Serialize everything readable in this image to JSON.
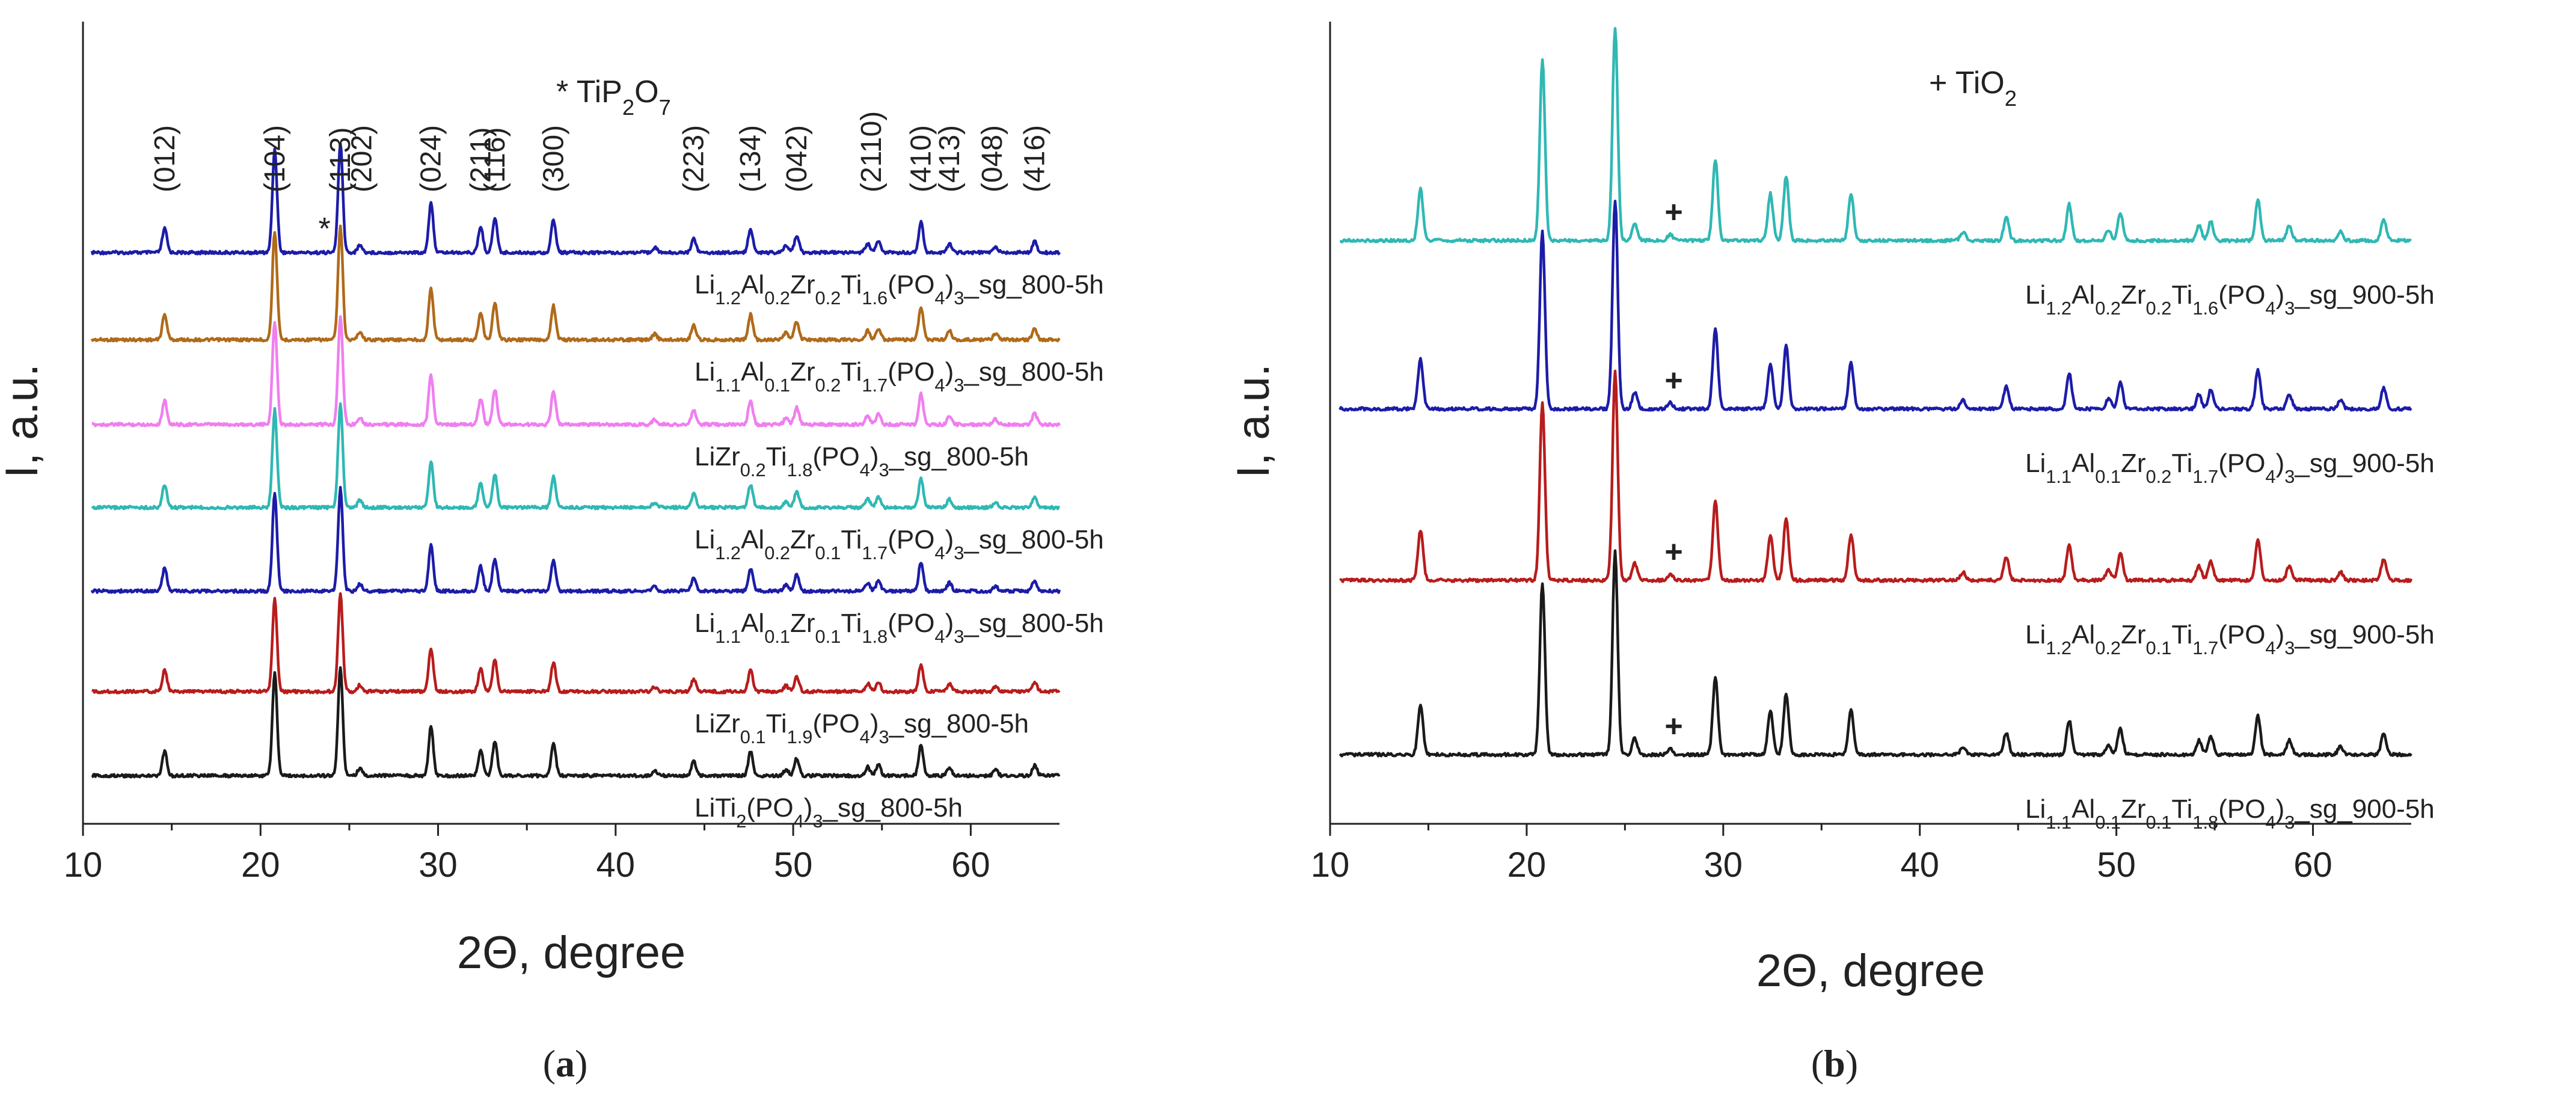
{
  "chart_data": [
    {
      "panel": "(a)",
      "panel_letter": "a",
      "type": "line",
      "xlabel": "2Θ, degree",
      "ylabel": "I, a.u.",
      "xlim": [
        10,
        65
      ],
      "xticks": [
        10,
        20,
        30,
        40,
        50,
        60
      ],
      "legend_note": {
        "marker": "*",
        "phase": "TiP",
        "sub1": "2",
        "mid": "O",
        "sub2": "7"
      },
      "hkl_labels": [
        {
          "label": "(012)",
          "x": 14.6
        },
        {
          "label": "(104)",
          "x": 20.8
        },
        {
          "label": "(113)",
          "x": 24.5
        },
        {
          "label": "(202)",
          "x": 25.7
        },
        {
          "label": "(024)",
          "x": 29.6
        },
        {
          "label": "(211)",
          "x": 32.4
        },
        {
          "label": "(116)",
          "x": 33.2
        },
        {
          "label": "(300)",
          "x": 36.5
        },
        {
          "label": "(223)",
          "x": 44.4
        },
        {
          "label": "(134)",
          "x": 47.6
        },
        {
          "label": "(042)",
          "x": 50.2
        },
        {
          "label": "(2110)",
          "x": 54.4
        },
        {
          "label": "(410)",
          "x": 57.2
        },
        {
          "label": "(413)",
          "x": 58.8
        },
        {
          "label": "(048)",
          "x": 61.2
        },
        {
          "label": "(416)",
          "x": 63.6
        }
      ],
      "impurity_marks": [
        {
          "symbol": "*",
          "x": 23.6
        }
      ],
      "series": [
        {
          "name": [
            [
              "Li",
              ""
            ],
            [
              "1.2",
              "sub"
            ],
            [
              "Al",
              ""
            ],
            [
              "0.2",
              "sub"
            ],
            [
              "Zr",
              ""
            ],
            [
              "0.2",
              "sub"
            ],
            [
              "Ti",
              ""
            ],
            [
              "1.6",
              "sub"
            ],
            [
              "(PO",
              ""
            ],
            [
              "4",
              "sub"
            ],
            [
              ")",
              ""
            ],
            [
              "3",
              "sub"
            ],
            [
              "_sg_800-5h",
              ""
            ]
          ],
          "color": "#1c1ca8"
        },
        {
          "name": [
            [
              "Li",
              ""
            ],
            [
              "1.1",
              "sub"
            ],
            [
              "Al",
              ""
            ],
            [
              "0.1",
              "sub"
            ],
            [
              "Zr",
              ""
            ],
            [
              "0.2",
              "sub"
            ],
            [
              "Ti",
              ""
            ],
            [
              "1.7",
              "sub"
            ],
            [
              "(PO",
              ""
            ],
            [
              "4",
              "sub"
            ],
            [
              ")",
              ""
            ],
            [
              "3",
              "sub"
            ],
            [
              "_sg_800-5h",
              ""
            ]
          ],
          "color": "#b06a1a"
        },
        {
          "name": [
            [
              "LiZr",
              ""
            ],
            [
              "0.2",
              "sub"
            ],
            [
              "Ti",
              ""
            ],
            [
              "1.8",
              "sub"
            ],
            [
              "(PO",
              ""
            ],
            [
              "4",
              "sub"
            ],
            [
              ")",
              ""
            ],
            [
              "3",
              "sub"
            ],
            [
              "_sg_800-5h",
              ""
            ]
          ],
          "color": "#f07ef0"
        },
        {
          "name": [
            [
              "Li",
              ""
            ],
            [
              "1.2",
              "sub"
            ],
            [
              "Al",
              ""
            ],
            [
              "0.2",
              "sub"
            ],
            [
              "Zr",
              ""
            ],
            [
              "0.1",
              "sub"
            ],
            [
              "Ti",
              ""
            ],
            [
              "1.7",
              "sub"
            ],
            [
              "(PO",
              ""
            ],
            [
              "4",
              "sub"
            ],
            [
              ")",
              ""
            ],
            [
              "3",
              "sub"
            ],
            [
              "_sg_800-5h",
              ""
            ]
          ],
          "color": "#2fb8b4"
        },
        {
          "name": [
            [
              "Li",
              ""
            ],
            [
              "1.1",
              "sub"
            ],
            [
              "Al",
              ""
            ],
            [
              "0.1",
              "sub"
            ],
            [
              "Zr",
              ""
            ],
            [
              "0.1",
              "sub"
            ],
            [
              "Ti",
              ""
            ],
            [
              "1.8",
              "sub"
            ],
            [
              "(PO",
              ""
            ],
            [
              "4",
              "sub"
            ],
            [
              ")",
              ""
            ],
            [
              "3",
              "sub"
            ],
            [
              "_sg_800-5h",
              ""
            ]
          ],
          "color": "#1c1ca8"
        },
        {
          "name": [
            [
              "LiZr",
              ""
            ],
            [
              "0.1",
              "sub"
            ],
            [
              "Ti",
              ""
            ],
            [
              "1.9",
              "sub"
            ],
            [
              "(PO",
              ""
            ],
            [
              "4",
              "sub"
            ],
            [
              ")",
              ""
            ],
            [
              "3",
              "sub"
            ],
            [
              "_sg_800-5h",
              ""
            ]
          ],
          "color": "#b81c1c"
        },
        {
          "name": [
            [
              "LiTi",
              ""
            ],
            [
              "2",
              "sub"
            ],
            [
              "(PO",
              ""
            ],
            [
              "4",
              "sub"
            ],
            [
              ")",
              ""
            ],
            [
              "3",
              "sub"
            ],
            [
              "_sg_800-5h",
              ""
            ]
          ],
          "color": "#1a1a1a"
        }
      ],
      "peaks": [
        {
          "x": 14.6,
          "h": 0.22
        },
        {
          "x": 20.8,
          "h": 0.95
        },
        {
          "x": 24.5,
          "h": 1.0
        },
        {
          "x": 25.6,
          "h": 0.07
        },
        {
          "x": 29.6,
          "h": 0.45
        },
        {
          "x": 32.4,
          "h": 0.24
        },
        {
          "x": 33.2,
          "h": 0.32
        },
        {
          "x": 36.5,
          "h": 0.3
        },
        {
          "x": 42.2,
          "h": 0.05
        },
        {
          "x": 44.4,
          "h": 0.13
        },
        {
          "x": 47.6,
          "h": 0.22
        },
        {
          "x": 49.6,
          "h": 0.06
        },
        {
          "x": 50.2,
          "h": 0.16
        },
        {
          "x": 54.2,
          "h": 0.08
        },
        {
          "x": 54.8,
          "h": 0.1
        },
        {
          "x": 57.2,
          "h": 0.28
        },
        {
          "x": 58.8,
          "h": 0.08
        },
        {
          "x": 61.4,
          "h": 0.05
        },
        {
          "x": 63.6,
          "h": 0.1
        }
      ]
    },
    {
      "panel": "(b)",
      "panel_letter": "b",
      "type": "line",
      "xlabel": "2Θ, degree",
      "ylabel": "I, a.u.",
      "xlim": [
        10,
        65
      ],
      "xticks": [
        10,
        20,
        30,
        40,
        50,
        60
      ],
      "legend_note": {
        "marker": "+",
        "phase": "TiO",
        "sub1": "2"
      },
      "impurity_marks": [
        {
          "symbol": "+",
          "x": 27.3
        }
      ],
      "series": [
        {
          "name": [
            [
              "Li",
              ""
            ],
            [
              "1.2",
              "sub"
            ],
            [
              "Al",
              ""
            ],
            [
              "0.2",
              "sub"
            ],
            [
              "Zr",
              ""
            ],
            [
              "0.2",
              "sub"
            ],
            [
              "Ti",
              ""
            ],
            [
              "1.6",
              "sub"
            ],
            [
              "(PO",
              ""
            ],
            [
              "4",
              "sub"
            ],
            [
              ")",
              ""
            ],
            [
              "3",
              "sub"
            ],
            [
              "_sg_900-5h",
              ""
            ]
          ],
          "color": "#2fb8b4"
        },
        {
          "name": [
            [
              "Li",
              ""
            ],
            [
              "1.1",
              "sub"
            ],
            [
              "Al",
              ""
            ],
            [
              "0.1",
              "sub"
            ],
            [
              "Zr",
              ""
            ],
            [
              "0.2",
              "sub"
            ],
            [
              "Ti",
              ""
            ],
            [
              "1.7",
              "sub"
            ],
            [
              "(PO",
              ""
            ],
            [
              "4",
              "sub"
            ],
            [
              ")",
              ""
            ],
            [
              "3",
              "sub"
            ],
            [
              "_sg_900-5h",
              ""
            ]
          ],
          "color": "#1c1ca8"
        },
        {
          "name": [
            [
              "Li",
              ""
            ],
            [
              "1.2",
              "sub"
            ],
            [
              "Al",
              ""
            ],
            [
              "0.2",
              "sub"
            ],
            [
              "Zr",
              ""
            ],
            [
              "0.1",
              "sub"
            ],
            [
              "Ti",
              ""
            ],
            [
              "1.7",
              "sub"
            ],
            [
              "(PO",
              ""
            ],
            [
              "4",
              "sub"
            ],
            [
              ")",
              ""
            ],
            [
              "3",
              "sub"
            ],
            [
              "_sg_900-5h",
              ""
            ]
          ],
          "color": "#b81c1c"
        },
        {
          "name": [
            [
              "Li",
              ""
            ],
            [
              "1.1",
              "sub"
            ],
            [
              "Al",
              ""
            ],
            [
              "0.1",
              "sub"
            ],
            [
              "Zr",
              ""
            ],
            [
              "0.1",
              "sub"
            ],
            [
              "Ti",
              ""
            ],
            [
              "1.8",
              "sub"
            ],
            [
              "(PO",
              ""
            ],
            [
              "4",
              "sub"
            ],
            [
              ")",
              ""
            ],
            [
              "3",
              "sub"
            ],
            [
              "_sg_900-5h",
              ""
            ]
          ],
          "color": "#1a1a1a"
        }
      ],
      "peaks": [
        {
          "x": 14.6,
          "h": 0.24
        },
        {
          "x": 20.8,
          "h": 0.85
        },
        {
          "x": 24.5,
          "h": 1.0
        },
        {
          "x": 25.5,
          "h": 0.08
        },
        {
          "x": 27.3,
          "h": 0.03
        },
        {
          "x": 29.6,
          "h": 0.38
        },
        {
          "x": 32.4,
          "h": 0.22
        },
        {
          "x": 33.2,
          "h": 0.3
        },
        {
          "x": 36.5,
          "h": 0.22
        },
        {
          "x": 42.2,
          "h": 0.04
        },
        {
          "x": 44.4,
          "h": 0.11
        },
        {
          "x": 47.6,
          "h": 0.17
        },
        {
          "x": 49.6,
          "h": 0.05
        },
        {
          "x": 50.2,
          "h": 0.13
        },
        {
          "x": 54.2,
          "h": 0.07
        },
        {
          "x": 54.8,
          "h": 0.09
        },
        {
          "x": 57.2,
          "h": 0.19
        },
        {
          "x": 58.8,
          "h": 0.07
        },
        {
          "x": 61.4,
          "h": 0.04
        },
        {
          "x": 63.6,
          "h": 0.1
        }
      ]
    }
  ]
}
